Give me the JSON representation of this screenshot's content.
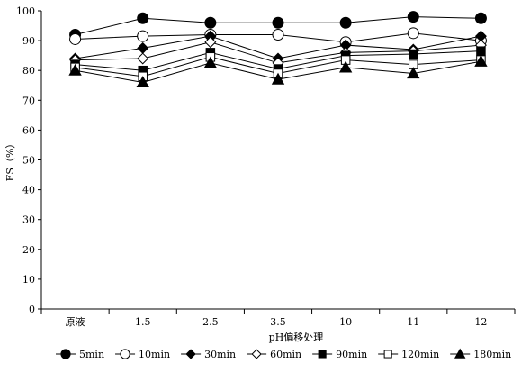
{
  "chart_data": {
    "type": "line",
    "categories": [
      "原液",
      "1.5",
      "2.5",
      "3.5",
      "10",
      "11",
      "12"
    ],
    "xlabel": "pH偏移处理",
    "ylabel": "FS（%）",
    "ylim": [
      0,
      100
    ],
    "yticks": [
      0,
      10,
      20,
      30,
      40,
      50,
      60,
      70,
      80,
      90,
      100
    ],
    "grid": false,
    "legend_position": "bottom",
    "series": [
      {
        "name": "5min",
        "marker": "circle",
        "fill": "#000000",
        "values": [
          92,
          97.5,
          96,
          96,
          96,
          98,
          97.5
        ]
      },
      {
        "name": "10min",
        "marker": "circle",
        "fill": "#ffffff",
        "values": [
          90.5,
          91.5,
          92,
          92,
          89.5,
          92.5,
          90
        ]
      },
      {
        "name": "30min",
        "marker": "diamond",
        "fill": "#000000",
        "values": [
          84,
          87.5,
          91.5,
          84,
          88.5,
          87,
          91.5
        ]
      },
      {
        "name": "60min",
        "marker": "diamond",
        "fill": "#ffffff",
        "values": [
          83.5,
          84,
          89.5,
          82.5,
          86,
          86.5,
          88.5
        ]
      },
      {
        "name": "90min",
        "marker": "square",
        "fill": "#000000",
        "values": [
          82,
          80,
          86,
          80.5,
          85,
          85.5,
          86.5
        ]
      },
      {
        "name": "120min",
        "marker": "square",
        "fill": "#ffffff",
        "values": [
          81,
          78,
          84.5,
          79,
          83.5,
          82,
          83.5
        ]
      },
      {
        "name": "180min",
        "marker": "triangle",
        "fill": "#000000",
        "values": [
          80,
          76,
          82.5,
          77,
          81,
          79,
          83
        ]
      }
    ]
  }
}
